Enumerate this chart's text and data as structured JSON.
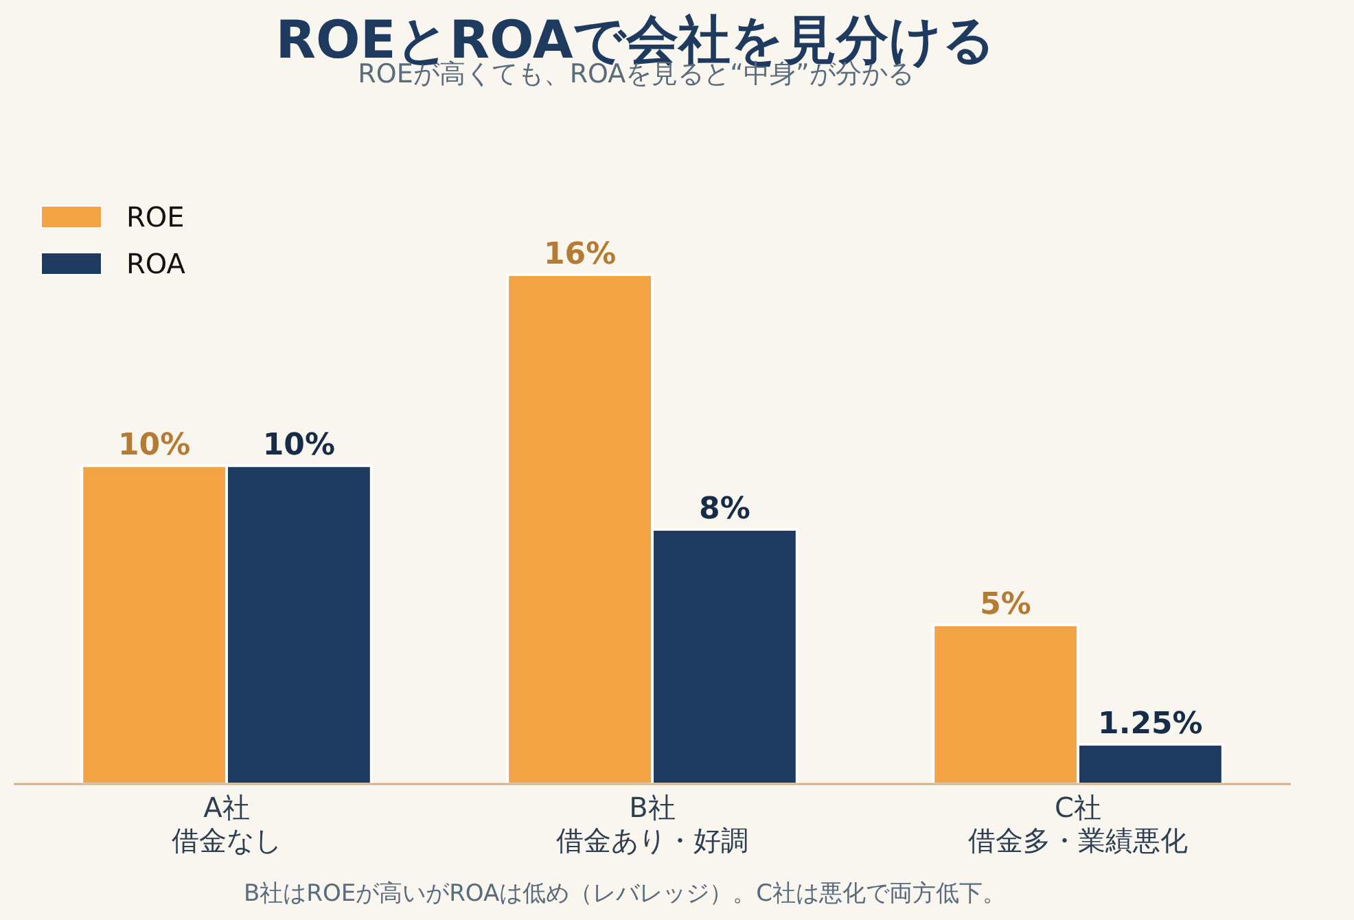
{
  "chart_data": {
    "type": "bar",
    "title": "ROEとROAで会社を見分ける",
    "subtitle": "ROEが高くても、ROAを見ると“中身”が分かる",
    "categories": [
      "A社借金なし",
      "B社借金あり・好調",
      "C社借金多・業績悪化"
    ],
    "series": [
      {
        "name": "ROE",
        "color": "#f2a444",
        "values": [
          10,
          16,
          5
        ],
        "value_labels": [
          "10%",
          "16%",
          "5%"
        ]
      },
      {
        "name": "ROA",
        "color": "#1f3a5f",
        "values": [
          10,
          8,
          1.25
        ],
        "value_labels": [
          "10%",
          "8%",
          "1.25%"
        ]
      }
    ],
    "legend": "top left",
    "grid": false,
    "annotations": [
      "B社はROEが高いがROAは低め（レバレッジ）。C社は悪化で両方低下。"
    ]
  }
}
